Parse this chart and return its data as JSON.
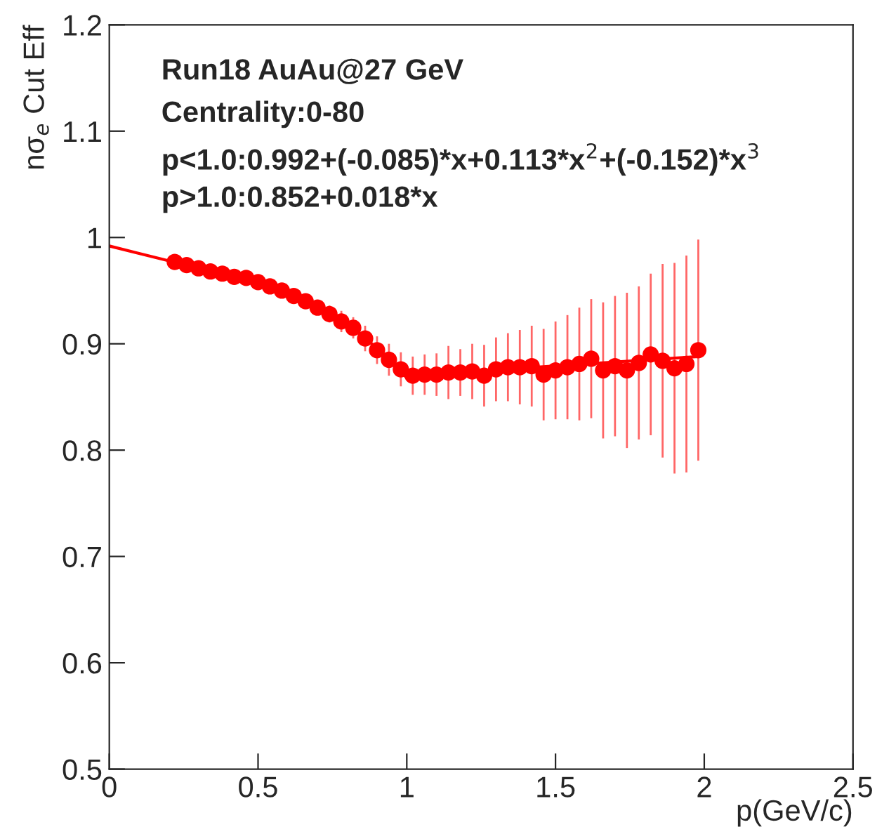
{
  "chart_data": {
    "type": "scatter",
    "xlabel": "p(GeV/c)",
    "ylabel": "nσ$_{e}$ Cut Eff",
    "annotations": [
      "Run18 AuAu@27 GeV",
      "Centrality:0-80",
      "p<1.0:0.992+(-0.085)*x+0.113*x$^{2}$+(-0.152)*x$^{3}$",
      "p>1.0:0.852+0.018*x"
    ],
    "xlim": [
      0,
      2.5
    ],
    "xticks": [
      0,
      0.5,
      1,
      1.5,
      2,
      2.5
    ],
    "ylim": [
      0.5,
      1.2
    ],
    "yticks": [
      0.5,
      0.6,
      0.7,
      0.8,
      0.9,
      1,
      1.1,
      1.2
    ],
    "grid": false,
    "series": [
      {
        "color": "#ff0000",
        "marker": "circle",
        "x": [
          0.22,
          0.26,
          0.3,
          0.34,
          0.38,
          0.42,
          0.46,
          0.5,
          0.54,
          0.58,
          0.62,
          0.66,
          0.7,
          0.74,
          0.78,
          0.82,
          0.86,
          0.9,
          0.94,
          0.98,
          1.02,
          1.06,
          1.1,
          1.14,
          1.18,
          1.22,
          1.26,
          1.3,
          1.34,
          1.38,
          1.42,
          1.46,
          1.5,
          1.54,
          1.58,
          1.62,
          1.66,
          1.7,
          1.74,
          1.78,
          1.82,
          1.86,
          1.9,
          1.94,
          1.98
        ],
        "values": [
          0.977,
          0.974,
          0.971,
          0.968,
          0.966,
          0.963,
          0.962,
          0.958,
          0.954,
          0.95,
          0.945,
          0.94,
          0.934,
          0.928,
          0.921,
          0.915,
          0.905,
          0.894,
          0.885,
          0.876,
          0.87,
          0.871,
          0.871,
          0.873,
          0.873,
          0.874,
          0.87,
          0.876,
          0.878,
          0.878,
          0.879,
          0.871,
          0.875,
          0.878,
          0.881,
          0.886,
          0.875,
          0.879,
          0.875,
          0.882,
          0.89,
          0.884,
          0.877,
          0.881,
          0.894
        ],
        "errors": [
          0.002,
          0.002,
          0.002,
          0.002,
          0.002,
          0.003,
          0.003,
          0.003,
          0.003,
          0.004,
          0.004,
          0.005,
          0.007,
          0.008,
          0.01,
          0.01,
          0.012,
          0.013,
          0.015,
          0.016,
          0.018,
          0.019,
          0.02,
          0.025,
          0.022,
          0.026,
          0.029,
          0.03,
          0.032,
          0.035,
          0.038,
          0.043,
          0.046,
          0.049,
          0.053,
          0.056,
          0.064,
          0.066,
          0.073,
          0.072,
          0.076,
          0.091,
          0.099,
          0.102,
          0.104
        ]
      },
      {
        "type": "line",
        "color": "#ff0000",
        "line_style": "solid",
        "x": [
          0,
          0.1,
          0.2,
          0.3,
          0.4,
          0.5,
          0.6,
          0.7,
          0.8,
          0.9,
          1.0
        ],
        "values": [
          0.992,
          0.985,
          0.978,
          0.973,
          0.966,
          0.959,
          0.949,
          0.936,
          0.919,
          0.896,
          0.868
        ]
      },
      {
        "type": "line",
        "color": "#ff0000",
        "line_style": "solid",
        "x": [
          1.0,
          1.98
        ],
        "values": [
          0.87,
          0.888
        ]
      }
    ]
  }
}
